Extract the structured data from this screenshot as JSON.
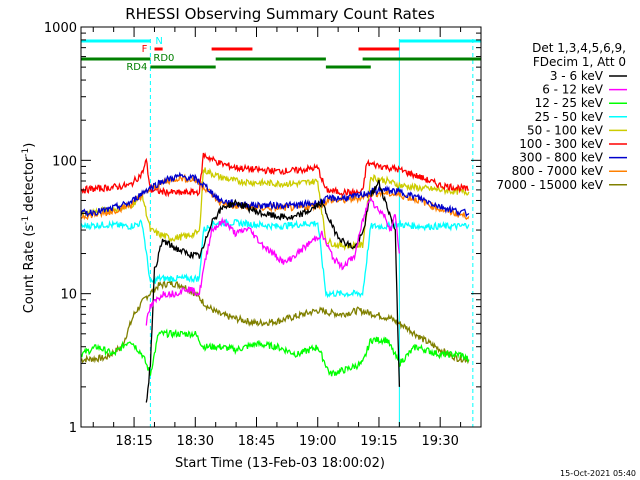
{
  "chart_data": {
    "type": "line",
    "title": "RHESSI Observing Summary Count Rates",
    "xlabel": "Start Time (13-Feb-03 18:00:02)",
    "ylabel_main": "Count Rate (s",
    "ylabel_sup1": "-1",
    "ylabel_mid": " detector",
    "ylabel_sup2": "-1",
    "ylabel_end": ")",
    "y_scale": "log",
    "ylim": [
      1,
      1000
    ],
    "xlim_minutes": [
      2,
      100
    ],
    "grid": false,
    "x_ticks": [
      {
        "m": 15,
        "label": "18:15"
      },
      {
        "m": 30,
        "label": "18:30"
      },
      {
        "m": 45,
        "label": "18:45"
      },
      {
        "m": 60,
        "label": "19:00"
      },
      {
        "m": 75,
        "label": "19:15"
      },
      {
        "m": 90,
        "label": "19:30"
      }
    ],
    "y_ticks": [
      {
        "v": 1,
        "label": "1"
      },
      {
        "v": 10,
        "label": "10"
      },
      {
        "v": 100,
        "label": "100"
      },
      {
        "v": 1000,
        "label": "1000"
      }
    ],
    "legend_header": [
      "Det 1,3,4,5,6,9,",
      "FDecim 1, Att 0"
    ],
    "legend_position": "right",
    "timestamp": "15-Oct-2021 05:40",
    "flags": [
      {
        "label": "N",
        "color": "#00ffff",
        "segments": [
          [
            2,
            19
          ],
          [
            80,
            100
          ]
        ]
      },
      {
        "label": "F",
        "color": "#ff0000",
        "segments": [
          [
            20,
            22
          ],
          [
            34,
            44
          ],
          [
            70,
            80
          ]
        ]
      },
      {
        "label": "RD0",
        "color": "#008000",
        "segments": [
          [
            2,
            19
          ],
          [
            35,
            62
          ],
          [
            71,
            100
          ]
        ]
      },
      {
        "label": "RD4",
        "color": "#008000",
        "segments": [
          [
            19,
            35
          ],
          [
            62,
            73
          ]
        ]
      }
    ],
    "vlines": [
      {
        "m": 19,
        "style": "dashed"
      },
      {
        "m": 80,
        "style": "solid"
      },
      {
        "m": 98,
        "style": "dashed"
      }
    ],
    "series": [
      {
        "name": "3 - 6 keV",
        "color": "#000000",
        "points": [
          [
            18,
            1.5
          ],
          [
            19,
            3
          ],
          [
            20,
            15
          ],
          [
            22,
            25
          ],
          [
            25,
            22
          ],
          [
            28,
            20
          ],
          [
            31,
            19
          ],
          [
            32,
            22
          ],
          [
            34,
            35
          ],
          [
            37,
            45
          ],
          [
            40,
            48
          ],
          [
            43,
            44
          ],
          [
            46,
            40
          ],
          [
            50,
            38
          ],
          [
            54,
            37
          ],
          [
            58,
            42
          ],
          [
            61,
            48
          ],
          [
            64,
            30
          ],
          [
            66,
            25
          ],
          [
            69,
            22
          ],
          [
            71,
            28
          ],
          [
            73,
            55
          ],
          [
            75,
            68
          ],
          [
            77,
            45
          ],
          [
            79,
            30
          ],
          [
            80,
            2
          ]
        ]
      },
      {
        "name": "6 - 12 keV",
        "color": "#ff00ff",
        "points": [
          [
            18,
            6
          ],
          [
            19,
            8
          ],
          [
            22,
            10
          ],
          [
            25,
            10
          ],
          [
            28,
            11
          ],
          [
            31,
            10
          ],
          [
            32,
            15
          ],
          [
            34,
            30
          ],
          [
            37,
            35
          ],
          [
            40,
            28
          ],
          [
            43,
            31
          ],
          [
            46,
            24
          ],
          [
            49,
            20
          ],
          [
            52,
            17
          ],
          [
            55,
            20
          ],
          [
            58,
            24
          ],
          [
            61,
            28
          ],
          [
            64,
            18
          ],
          [
            66,
            16
          ],
          [
            69,
            19
          ],
          [
            71,
            35
          ],
          [
            73,
            55
          ],
          [
            74,
            45
          ],
          [
            76,
            40
          ],
          [
            78,
            30
          ],
          [
            79,
            40
          ],
          [
            80,
            20
          ]
        ]
      },
      {
        "name": "12 - 25 keV",
        "color": "#00ff00",
        "points": [
          [
            2,
            3.5
          ],
          [
            6,
            4
          ],
          [
            10,
            3.5
          ],
          [
            14,
            4.5
          ],
          [
            17,
            3.5
          ],
          [
            19,
            2.5
          ],
          [
            21,
            5
          ],
          [
            25,
            5
          ],
          [
            30,
            5
          ],
          [
            32,
            4
          ],
          [
            36,
            4
          ],
          [
            40,
            3.8
          ],
          [
            45,
            4.2
          ],
          [
            50,
            4
          ],
          [
            55,
            3.5
          ],
          [
            60,
            4
          ],
          [
            63,
            2.5
          ],
          [
            67,
            2.7
          ],
          [
            71,
            3
          ],
          [
            73,
            4.5
          ],
          [
            77,
            4.5
          ],
          [
            80,
            3
          ],
          [
            84,
            4
          ],
          [
            90,
            3.5
          ],
          [
            95,
            3.5
          ],
          [
            97,
            3.2
          ]
        ]
      },
      {
        "name": "25 - 50 keV",
        "color": "#00ffff",
        "points": [
          [
            2,
            32
          ],
          [
            8,
            33
          ],
          [
            14,
            32
          ],
          [
            17,
            34
          ],
          [
            19,
            12
          ],
          [
            21,
            13
          ],
          [
            24,
            13
          ],
          [
            28,
            13
          ],
          [
            31,
            13
          ],
          [
            32,
            30
          ],
          [
            35,
            34
          ],
          [
            40,
            34
          ],
          [
            45,
            33
          ],
          [
            50,
            32
          ],
          [
            55,
            33
          ],
          [
            60,
            34
          ],
          [
            62,
            10
          ],
          [
            65,
            10
          ],
          [
            69,
            10
          ],
          [
            71,
            10
          ],
          [
            73,
            32
          ],
          [
            77,
            32
          ],
          [
            80,
            33
          ],
          [
            85,
            32
          ],
          [
            90,
            32
          ],
          [
            95,
            32
          ],
          [
            97,
            33
          ]
        ]
      },
      {
        "name": "50 - 100 keV",
        "color": "#cccc00",
        "points": [
          [
            2,
            40
          ],
          [
            8,
            42
          ],
          [
            14,
            45
          ],
          [
            17,
            55
          ],
          [
            19,
            30
          ],
          [
            21,
            28
          ],
          [
            24,
            26
          ],
          [
            28,
            27
          ],
          [
            31,
            29
          ],
          [
            32,
            85
          ],
          [
            36,
            75
          ],
          [
            40,
            70
          ],
          [
            45,
            68
          ],
          [
            50,
            67
          ],
          [
            55,
            67
          ],
          [
            60,
            70
          ],
          [
            62,
            25
          ],
          [
            65,
            23
          ],
          [
            69,
            23
          ],
          [
            71,
            23
          ],
          [
            73,
            75
          ],
          [
            77,
            70
          ],
          [
            80,
            65
          ],
          [
            85,
            62
          ],
          [
            90,
            60
          ],
          [
            95,
            58
          ],
          [
            97,
            58
          ]
        ]
      },
      {
        "name": "100 - 300 keV",
        "color": "#ff0000",
        "points": [
          [
            2,
            60
          ],
          [
            8,
            62
          ],
          [
            14,
            65
          ],
          [
            17,
            80
          ],
          [
            18,
            100
          ],
          [
            19,
            60
          ],
          [
            22,
            58
          ],
          [
            26,
            57
          ],
          [
            31,
            58
          ],
          [
            32,
            110
          ],
          [
            36,
            95
          ],
          [
            40,
            88
          ],
          [
            45,
            85
          ],
          [
            50,
            83
          ],
          [
            55,
            84
          ],
          [
            60,
            88
          ],
          [
            62,
            60
          ],
          [
            65,
            58
          ],
          [
            69,
            57
          ],
          [
            71,
            58
          ],
          [
            72,
            95
          ],
          [
            76,
            90
          ],
          [
            80,
            85
          ],
          [
            85,
            75
          ],
          [
            90,
            65
          ],
          [
            95,
            62
          ],
          [
            97,
            60
          ]
        ]
      },
      {
        "name": "300 - 800 keV",
        "color": "#0000cc",
        "points": [
          [
            2,
            40
          ],
          [
            8,
            42
          ],
          [
            14,
            48
          ],
          [
            18,
            60
          ],
          [
            22,
            70
          ],
          [
            26,
            76
          ],
          [
            30,
            73
          ],
          [
            33,
            62
          ],
          [
            36,
            50
          ],
          [
            40,
            47
          ],
          [
            45,
            46
          ],
          [
            50,
            46
          ],
          [
            55,
            46
          ],
          [
            60,
            48
          ],
          [
            63,
            52
          ],
          [
            66,
            52
          ],
          [
            70,
            54
          ],
          [
            73,
            58
          ],
          [
            76,
            60
          ],
          [
            80,
            58
          ],
          [
            85,
            52
          ],
          [
            90,
            45
          ],
          [
            95,
            41
          ],
          [
            97,
            40
          ]
        ]
      },
      {
        "name": "800 - 7000 keV",
        "color": "#ff8000",
        "points": [
          [
            2,
            38
          ],
          [
            8,
            40
          ],
          [
            14,
            46
          ],
          [
            18,
            58
          ],
          [
            22,
            68
          ],
          [
            26,
            74
          ],
          [
            30,
            71
          ],
          [
            33,
            60
          ],
          [
            36,
            48
          ],
          [
            40,
            45
          ],
          [
            45,
            44
          ],
          [
            50,
            44
          ],
          [
            55,
            44
          ],
          [
            60,
            46
          ],
          [
            63,
            50
          ],
          [
            66,
            50
          ],
          [
            70,
            52
          ],
          [
            73,
            56
          ],
          [
            76,
            57
          ],
          [
            80,
            55
          ],
          [
            85,
            50
          ],
          [
            90,
            43
          ],
          [
            95,
            39
          ],
          [
            97,
            38
          ]
        ]
      },
      {
        "name": "7000 - 15000 keV",
        "color": "#808000",
        "points": [
          [
            2,
            3.2
          ],
          [
            8,
            3.3
          ],
          [
            12,
            4
          ],
          [
            15,
            7
          ],
          [
            18,
            9.5
          ],
          [
            21,
            11.5
          ],
          [
            24,
            12
          ],
          [
            27,
            11.5
          ],
          [
            30,
            10
          ],
          [
            33,
            8
          ],
          [
            36,
            7
          ],
          [
            40,
            6.5
          ],
          [
            45,
            6
          ],
          [
            50,
            6.2
          ],
          [
            55,
            6.8
          ],
          [
            60,
            7.5
          ],
          [
            63,
            7.2
          ],
          [
            66,
            7
          ],
          [
            70,
            7.5
          ],
          [
            74,
            7
          ],
          [
            78,
            6.5
          ],
          [
            82,
            5.5
          ],
          [
            86,
            4.5
          ],
          [
            90,
            3.8
          ],
          [
            94,
            3.3
          ],
          [
            97,
            3.2
          ]
        ]
      }
    ]
  }
}
